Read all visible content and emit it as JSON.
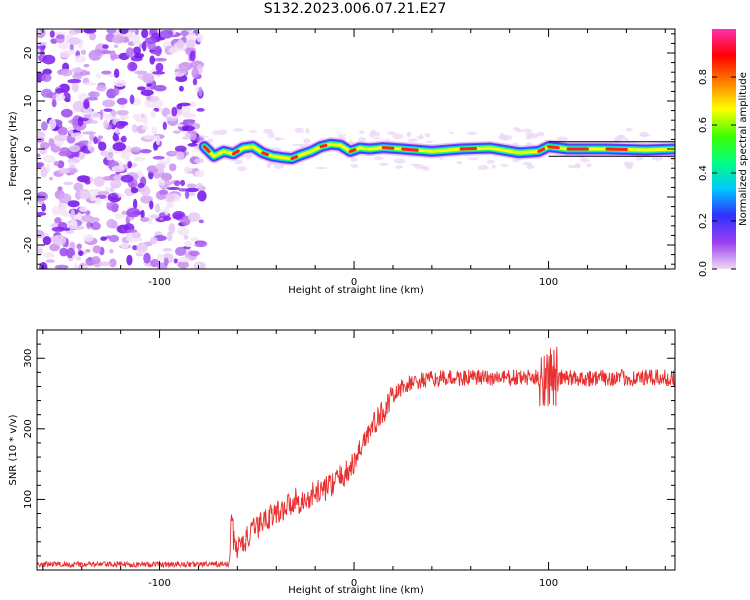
{
  "page": {
    "title": "S132.2023.006.07.21.E27"
  },
  "colors": {
    "line": "#e8302f",
    "colorbar_stops": [
      "#f0d8f4",
      "#9a40f0",
      "#3030ff",
      "#00c8ff",
      "#00ff80",
      "#40ff00",
      "#ffff00",
      "#ff8000",
      "#ff0000",
      "#ff30b0"
    ]
  },
  "chart_data": [
    {
      "type": "heatmap",
      "xlabel": "Height of straight line (km)",
      "ylabel": "Frequency (Hz)",
      "xlim": [
        -163,
        165
      ],
      "ylim": [
        -25,
        25
      ],
      "x_ticks": [
        -100,
        0,
        100
      ],
      "y_ticks": [
        -20,
        -10,
        0,
        10,
        20
      ],
      "noise_region_x": [
        -163,
        -78
      ],
      "ridge": {
        "x": [
          -77,
          -72,
          -67,
          -62,
          -57,
          -52,
          -47,
          -42,
          -37,
          -32,
          -27,
          -22,
          -17,
          -12,
          -7,
          -2,
          3,
          8,
          15,
          25,
          40,
          55,
          70,
          85,
          95,
          100,
          110,
          130,
          150,
          165
        ],
        "y": [
          0.5,
          -1.5,
          -0.5,
          -1.0,
          0.2,
          0.5,
          -0.8,
          -1.5,
          -1.8,
          -2.0,
          -1.2,
          -0.5,
          0.5,
          1.0,
          0.8,
          -0.5,
          0.2,
          0.0,
          0.3,
          0.0,
          -0.5,
          0.0,
          0.2,
          -0.8,
          -0.5,
          0.5,
          0.0,
          0.0,
          -0.2,
          0.0
        ]
      },
      "colorbar": {
        "label": "Normalized spectral amplitude",
        "ticks": [
          "0.0",
          "0.2",
          "0.4",
          "0.6",
          "0.8"
        ],
        "range": [
          0,
          1
        ]
      }
    },
    {
      "type": "line",
      "xlabel": "Height of straight line (km)",
      "ylabel": "SNR (10 * v/v)",
      "xlim": [
        -163,
        165
      ],
      "ylim": [
        0,
        340
      ],
      "x_ticks": [
        -100,
        0,
        100
      ],
      "y_ticks": [
        100,
        200,
        300
      ],
      "series": [
        {
          "x": [
            -163,
            -64,
            -63,
            -62,
            -60,
            -55,
            -50,
            -45,
            -40,
            -35,
            -30,
            -25,
            -20,
            -15,
            -10,
            -5,
            0,
            5,
            10,
            15,
            20,
            25,
            30,
            35,
            40,
            50,
            60,
            70,
            80,
            90,
            95,
            100,
            105,
            110,
            120,
            130,
            140,
            150,
            160,
            165
          ],
          "values": [
            8,
            8,
            85,
            45,
            30,
            45,
            60,
            75,
            80,
            90,
            100,
            95,
            110,
            115,
            125,
            135,
            150,
            185,
            205,
            225,
            245,
            260,
            265,
            268,
            270,
            272,
            272,
            272,
            272,
            272,
            272,
            275,
            272,
            272,
            272,
            272,
            272,
            272,
            272,
            272
          ]
        }
      ]
    }
  ]
}
